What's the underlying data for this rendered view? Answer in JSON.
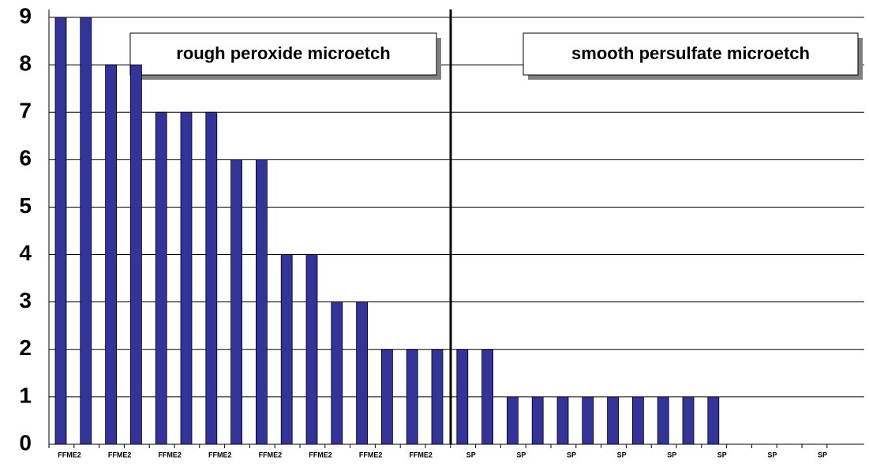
{
  "chart_data": {
    "type": "bar",
    "categories": [
      "FFME2",
      null,
      "FFME2",
      null,
      "FFME2",
      null,
      "FFME2",
      null,
      "FFME2",
      null,
      "FFME2",
      null,
      "FFME2",
      null,
      "FFME2",
      null,
      "SP",
      null,
      "SP",
      null,
      "SP",
      null,
      "SP",
      null,
      "SP",
      null,
      "SP",
      null,
      "SP",
      null,
      "SP",
      null
    ],
    "values": [
      9,
      9,
      8,
      8,
      7,
      7,
      7,
      6,
      6,
      4,
      4,
      3,
      3,
      2,
      2,
      2,
      2,
      2,
      1,
      1,
      1,
      1,
      1,
      1,
      1,
      1,
      1,
      0,
      0,
      0,
      0,
      0
    ],
    "color": "#333399",
    "ylim": [
      0,
      9
    ],
    "yticks": [
      0,
      1,
      2,
      3,
      4,
      5,
      6,
      7,
      8,
      9
    ],
    "grid": true,
    "annotations": [
      "rough peroxide microetch",
      "smooth persulfate microetch"
    ]
  }
}
